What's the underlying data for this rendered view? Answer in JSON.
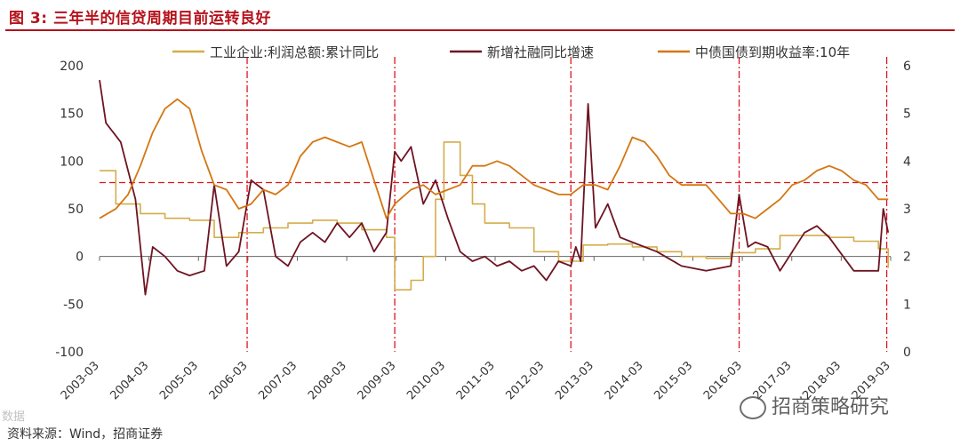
{
  "header": {
    "title": "图 3:  三年半的信贷周期目前运转良好"
  },
  "footer": {
    "source": "资料来源：Wind，招商证券",
    "watermark": "招商策略研究",
    "watermark_corner": "数据"
  },
  "chart_data": {
    "type": "line",
    "x_tick_labels": [
      "2003-03",
      "2004-03",
      "2005-03",
      "2006-03",
      "2007-03",
      "2008-03",
      "2009-03",
      "2010-03",
      "2011-03",
      "2012-03",
      "2013-03",
      "2014-03",
      "2015-03",
      "2016-03",
      "2017-03",
      "2018-03",
      "2019-03"
    ],
    "x_range": [
      2003.17,
      2019.25
    ],
    "left_axis": {
      "ticks": [
        "-100",
        "-50",
        "0",
        "50",
        "100",
        "150",
        "200"
      ],
      "ylim": [
        -100,
        200
      ]
    },
    "right_axis": {
      "ticks": [
        "0",
        "1",
        "2",
        "3",
        "4",
        "5",
        "6"
      ],
      "ylim": [
        0,
        6
      ]
    },
    "legend": {
      "placement": "top"
    },
    "cycle_markers_x": [
      2006.17,
      2009.17,
      2012.75,
      2016.17,
      2019.17
    ],
    "reference_line": {
      "axis": "right",
      "value": 3.55
    },
    "colors": {
      "profit": "#d4ad4a",
      "social_financing": "#6e1422",
      "bond_yield": "#d47612",
      "markers": "#e0141e"
    },
    "series": [
      {
        "name": "工业企业:利润总额:累计同比",
        "axis": "left",
        "step": true,
        "x": [
          2003.17,
          2003.5,
          2004.0,
          2004.5,
          2005.0,
          2005.5,
          2006.0,
          2006.5,
          2007.0,
          2007.5,
          2008.0,
          2008.5,
          2009.0,
          2009.17,
          2009.5,
          2009.75,
          2010.0,
          2010.17,
          2010.5,
          2010.75,
          2011.0,
          2011.5,
          2012.0,
          2012.5,
          2013.0,
          2013.5,
          2014.0,
          2014.5,
          2015.0,
          2015.5,
          2016.0,
          2016.5,
          2017.0,
          2017.5,
          2018.0,
          2018.5,
          2019.0,
          2019.2
        ],
        "values": [
          90,
          55,
          45,
          40,
          38,
          20,
          25,
          30,
          35,
          38,
          35,
          28,
          20,
          -35,
          -25,
          0,
          60,
          120,
          85,
          55,
          35,
          30,
          5,
          -5,
          12,
          13,
          10,
          5,
          0,
          -2,
          4,
          8,
          22,
          22,
          20,
          16,
          8,
          -12
        ]
      },
      {
        "name": "新增社融同比增速",
        "axis": "left",
        "x": [
          2003.17,
          2003.3,
          2003.6,
          2003.9,
          2004.1,
          2004.25,
          2004.5,
          2004.75,
          2005.0,
          2005.3,
          2005.5,
          2005.75,
          2006.0,
          2006.25,
          2006.5,
          2006.75,
          2007.0,
          2007.25,
          2007.5,
          2007.75,
          2008.0,
          2008.25,
          2008.5,
          2008.75,
          2009.0,
          2009.17,
          2009.3,
          2009.5,
          2009.75,
          2010.0,
          2010.25,
          2010.5,
          2010.75,
          2011.0,
          2011.25,
          2011.5,
          2011.75,
          2012.0,
          2012.25,
          2012.5,
          2012.75,
          2012.85,
          2012.95,
          2013.1,
          2013.25,
          2013.5,
          2013.75,
          2014.0,
          2014.5,
          2015.0,
          2015.5,
          2016.0,
          2016.17,
          2016.35,
          2016.5,
          2016.75,
          2017.0,
          2017.5,
          2017.75,
          2018.0,
          2018.5,
          2019.0,
          2019.1,
          2019.2
        ],
        "values": [
          185,
          140,
          120,
          60,
          -40,
          10,
          0,
          -15,
          -20,
          -15,
          75,
          -10,
          5,
          80,
          70,
          0,
          -10,
          15,
          25,
          15,
          35,
          20,
          35,
          5,
          25,
          110,
          100,
          115,
          55,
          80,
          40,
          5,
          -5,
          0,
          -10,
          -5,
          -15,
          -10,
          -25,
          -5,
          -10,
          10,
          -5,
          160,
          30,
          55,
          20,
          15,
          5,
          -10,
          -15,
          -10,
          65,
          10,
          15,
          10,
          -15,
          25,
          32,
          20,
          -15,
          -15,
          50,
          25
        ]
      },
      {
        "name": "中债国债到期收益率:10年",
        "axis": "right",
        "x": [
          2003.17,
          2003.5,
          2003.75,
          2004.0,
          2004.25,
          2004.5,
          2004.75,
          2005.0,
          2005.25,
          2005.5,
          2005.75,
          2006.0,
          2006.25,
          2006.5,
          2006.75,
          2007.0,
          2007.25,
          2007.5,
          2007.75,
          2008.0,
          2008.25,
          2008.5,
          2008.75,
          2009.0,
          2009.17,
          2009.5,
          2009.75,
          2010.0,
          2010.25,
          2010.5,
          2010.75,
          2011.0,
          2011.25,
          2011.5,
          2011.75,
          2012.0,
          2012.25,
          2012.5,
          2012.75,
          2013.0,
          2013.25,
          2013.5,
          2013.75,
          2014.0,
          2014.25,
          2014.5,
          2014.75,
          2015.0,
          2015.25,
          2015.5,
          2015.75,
          2016.0,
          2016.25,
          2016.5,
          2016.75,
          2017.0,
          2017.25,
          2017.5,
          2017.75,
          2018.0,
          2018.25,
          2018.5,
          2018.75,
          2019.0,
          2019.2
        ],
        "values": [
          2.8,
          3.0,
          3.3,
          3.9,
          4.6,
          5.1,
          5.3,
          5.1,
          4.2,
          3.5,
          3.4,
          3.0,
          3.1,
          3.4,
          3.3,
          3.5,
          4.1,
          4.4,
          4.5,
          4.4,
          4.3,
          4.4,
          3.6,
          2.8,
          3.1,
          3.4,
          3.5,
          3.3,
          3.4,
          3.5,
          3.9,
          3.9,
          4.0,
          3.9,
          3.7,
          3.5,
          3.4,
          3.3,
          3.3,
          3.5,
          3.5,
          3.4,
          3.9,
          4.5,
          4.4,
          4.1,
          3.7,
          3.5,
          3.5,
          3.5,
          3.2,
          2.9,
          2.9,
          2.8,
          3.0,
          3.2,
          3.5,
          3.6,
          3.8,
          3.9,
          3.8,
          3.6,
          3.5,
          3.2,
          3.2
        ]
      }
    ]
  }
}
